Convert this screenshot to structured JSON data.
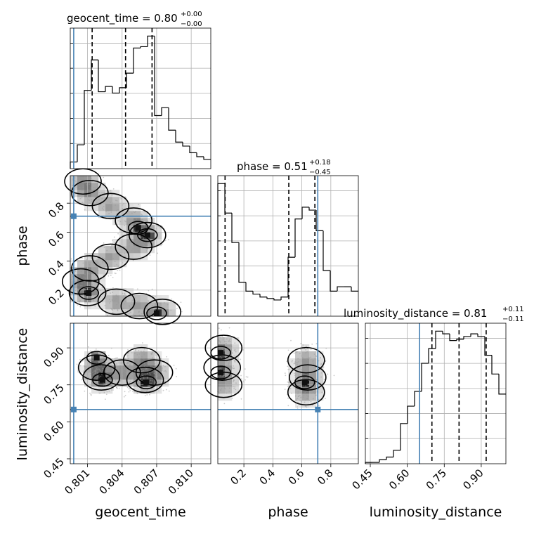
{
  "chart_data": {
    "type": "corner",
    "parameters": [
      {
        "name": "geocent_time",
        "label": "geocent_time",
        "title": {
          "prefix": "geocent_time = 0.80",
          "plus": "+0.00",
          "minus": "−0.00"
        },
        "range": [
          0.7995,
          0.8117
        ],
        "ticks": [
          0.801,
          0.804,
          0.807,
          0.81
        ],
        "tick_labels": [
          "0.801",
          "0.804",
          "0.807",
          "0.810"
        ],
        "truth": 0.7998,
        "quantiles": [
          0.8014,
          0.8043,
          0.8066
        ],
        "histogram": {
          "edges": [
            0.7995,
            0.80011,
            0.80072,
            0.80133,
            0.80194,
            0.80255,
            0.80316,
            0.80377,
            0.80438,
            0.80499,
            0.8056,
            0.80621,
            0.80682,
            0.80743,
            0.80804,
            0.80865,
            0.80926,
            0.80987,
            0.81048,
            0.81109,
            0.8117
          ],
          "counts": [
            5,
            18,
            59,
            82,
            58,
            62,
            57,
            61,
            72,
            91,
            92,
            100,
            40,
            46,
            29,
            20,
            17,
            12,
            9,
            7
          ]
        }
      },
      {
        "name": "phase",
        "label": "phase",
        "title": {
          "prefix": "phase = 0.51",
          "plus": "+0.18",
          "minus": "−0.45"
        },
        "range": [
          0.02,
          0.99
        ],
        "ticks": [
          0.2,
          0.4,
          0.6,
          0.8
        ],
        "tick_labels": [
          "0.2",
          "0.4",
          "0.6",
          "0.8"
        ],
        "truth": 0.71,
        "quantiles": [
          0.07,
          0.51,
          0.69
        ],
        "histogram": {
          "edges": [
            0.02,
            0.0685,
            0.117,
            0.1655,
            0.214,
            0.2625,
            0.311,
            0.3595,
            0.408,
            0.4565,
            0.505,
            0.5535,
            0.602,
            0.6505,
            0.699,
            0.7475,
            0.796,
            0.8445,
            0.893,
            0.9415,
            0.99
          ],
          "counts": [
            90,
            70,
            50,
            23,
            17,
            15,
            13,
            12,
            11,
            13,
            40,
            66,
            74,
            72,
            58,
            31,
            17,
            20,
            20,
            17
          ]
        }
      },
      {
        "name": "luminosity_distance",
        "label": "luminosity_distance",
        "title": {
          "prefix": "luminosity_distance = 0.81",
          "plus": "+0.11",
          "minus": "−0.11"
        },
        "range": [
          0.43,
          1.0
        ],
        "ticks": [
          0.45,
          0.6,
          0.75,
          0.9
        ],
        "tick_labels": [
          "0.45",
          "0.60",
          "0.75",
          "0.90"
        ],
        "truth": 0.65,
        "quantiles": [
          0.7,
          0.81,
          0.92
        ],
        "histogram": {
          "edges": [
            0.43,
            0.4585,
            0.487,
            0.5155,
            0.544,
            0.5725,
            0.601,
            0.6295,
            0.658,
            0.6865,
            0.715,
            0.7435,
            0.772,
            0.8005,
            0.829,
            0.8575,
            0.886,
            0.9145,
            0.943,
            0.9715,
            1.0
          ],
          "counts": [
            1,
            1,
            3,
            5,
            10,
            30,
            43,
            54,
            75,
            86,
            99,
            97,
            92,
            93,
            95,
            97,
            95,
            81,
            67,
            52
          ]
        }
      }
    ],
    "pairs": [
      {
        "x": "geocent_time",
        "y": "phase",
        "density": {
          "type": "s_curve",
          "points": [
            [
              0.8006,
              0.95
            ],
            [
              0.8012,
              0.87
            ],
            [
              0.803,
              0.78
            ],
            [
              0.805,
              0.68
            ],
            [
              0.8062,
              0.58
            ],
            [
              0.805,
              0.5
            ],
            [
              0.803,
              0.43
            ],
            [
              0.8012,
              0.35
            ],
            [
              0.8004,
              0.26
            ],
            [
              0.801,
              0.18
            ],
            [
              0.8035,
              0.12
            ],
            [
              0.8055,
              0.09
            ],
            [
              0.8075,
              0.05
            ]
          ]
        },
        "peaks": [
          [
            0.8062,
            0.58
          ],
          [
            0.8054,
            0.63
          ],
          [
            0.807,
            0.04
          ],
          [
            0.8011,
            0.18
          ]
        ]
      },
      {
        "x": "geocent_time",
        "y": "luminosity_distance",
        "density": {
          "type": "blobs",
          "points": [
            [
              0.8018,
              0.82
            ],
            [
              0.8022,
              0.78
            ],
            [
              0.804,
              0.8
            ],
            [
              0.8057,
              0.85
            ],
            [
              0.806,
              0.77
            ],
            [
              0.8068,
              0.8
            ]
          ]
        },
        "peaks": [
          [
            0.8018,
            0.86
          ],
          [
            0.8023,
            0.77
          ],
          [
            0.8061,
            0.76
          ]
        ]
      },
      {
        "x": "phase",
        "y": "luminosity_distance",
        "density": {
          "type": "blobs",
          "points": [
            [
              0.05,
              0.82
            ],
            [
              0.06,
              0.9
            ],
            [
              0.06,
              0.75
            ],
            [
              0.63,
              0.85
            ],
            [
              0.64,
              0.78
            ],
            [
              0.63,
              0.72
            ]
          ]
        },
        "peaks": [
          [
            0.04,
            0.88
          ],
          [
            0.04,
            0.8
          ],
          [
            0.62,
            0.76
          ]
        ]
      }
    ]
  }
}
